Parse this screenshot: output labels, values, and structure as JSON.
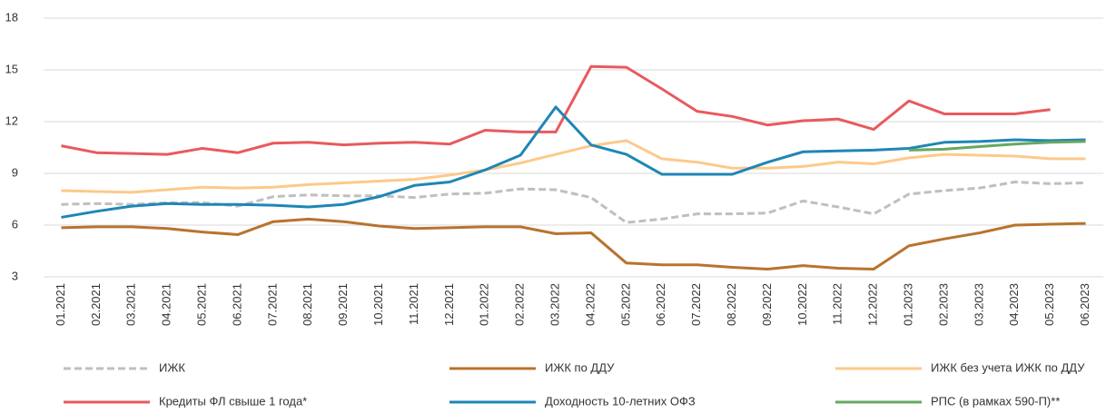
{
  "chart_data": {
    "type": "line",
    "categories": [
      "01.2021",
      "02.2021",
      "03.2021",
      "04.2021",
      "05.2021",
      "06.2021",
      "07.2021",
      "08.2021",
      "09.2021",
      "10.2021",
      "11.2021",
      "12.2021",
      "01.2022",
      "02.2022",
      "03.2022",
      "04.2022",
      "05.2022",
      "06.2022",
      "07.2022",
      "08.2022",
      "09.2022",
      "10.2022",
      "11.2022",
      "12.2022",
      "01.2023",
      "02.2023",
      "03.2023",
      "04.2023",
      "05.2023",
      "06.2023"
    ],
    "series": [
      {
        "name": "ИЖК",
        "color": "#bfbfbf",
        "dashed": true,
        "values": [
          7.2,
          7.25,
          7.2,
          7.3,
          7.3,
          7.1,
          7.65,
          7.75,
          7.7,
          7.7,
          7.6,
          7.8,
          7.85,
          8.1,
          8.05,
          7.6,
          6.15,
          6.35,
          6.65,
          6.65,
          6.7,
          7.4,
          7.05,
          6.65,
          7.8,
          8.0,
          8.15,
          8.5,
          8.4,
          8.45
        ]
      },
      {
        "name": "ИЖК по ДДУ",
        "color": "#b8732e",
        "values": [
          5.85,
          5.9,
          5.9,
          5.8,
          5.6,
          5.45,
          6.2,
          6.35,
          6.2,
          5.95,
          5.8,
          5.85,
          5.9,
          5.9,
          5.5,
          5.55,
          3.8,
          3.7,
          3.7,
          3.55,
          3.45,
          3.65,
          3.5,
          3.45,
          4.8,
          5.2,
          5.55,
          6.0,
          6.05,
          6.1
        ]
      },
      {
        "name": "ИЖК без учета ИЖК по ДДУ",
        "color": "#fdc98a",
        "values": [
          8.0,
          7.95,
          7.9,
          8.05,
          8.2,
          8.15,
          8.2,
          8.35,
          8.45,
          8.55,
          8.65,
          8.9,
          9.2,
          9.6,
          10.1,
          10.6,
          10.9,
          9.85,
          9.65,
          9.3,
          9.3,
          9.4,
          9.65,
          9.55,
          9.9,
          10.1,
          10.05,
          10.0,
          9.85,
          9.85
        ]
      },
      {
        "name": "Кредиты ФЛ свыше 1 года*",
        "color": "#e85a5e",
        "values": [
          10.6,
          10.2,
          10.15,
          10.1,
          10.45,
          10.2,
          10.75,
          10.8,
          10.65,
          10.75,
          10.8,
          10.7,
          11.5,
          11.4,
          11.4,
          15.2,
          15.15,
          13.9,
          12.6,
          12.3,
          11.8,
          12.05,
          12.15,
          11.55,
          13.2,
          12.45,
          12.45,
          12.45,
          12.7,
          null
        ]
      },
      {
        "name": "Доходность 10-летних ОФЗ",
        "color": "#1f86b5",
        "values": [
          6.45,
          6.8,
          7.1,
          7.25,
          7.2,
          7.2,
          7.15,
          7.05,
          7.2,
          7.65,
          8.3,
          8.5,
          9.2,
          10.05,
          12.85,
          10.65,
          10.1,
          8.95,
          8.95,
          8.95,
          9.65,
          10.25,
          10.3,
          10.35,
          10.45,
          10.8,
          10.85,
          10.95,
          10.9,
          10.95
        ]
      },
      {
        "name": "РПС (в рамках 590-П)**",
        "color": "#66a861",
        "values": [
          null,
          null,
          null,
          null,
          null,
          null,
          null,
          null,
          null,
          null,
          null,
          null,
          null,
          null,
          null,
          null,
          null,
          null,
          null,
          null,
          null,
          null,
          null,
          null,
          10.35,
          10.4,
          10.55,
          10.7,
          10.8,
          10.85
        ]
      }
    ],
    "ylim": [
      3,
      18
    ],
    "yticks": [
      3,
      6,
      9,
      12,
      15,
      18
    ],
    "grid": true
  }
}
